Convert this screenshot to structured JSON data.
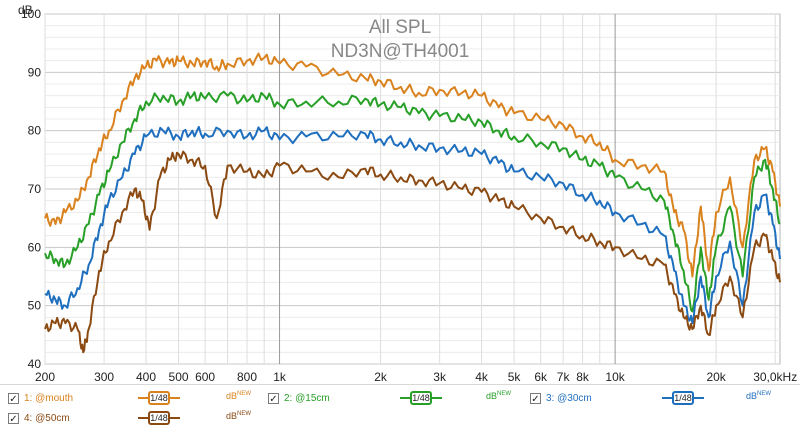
{
  "chart_data": {
    "type": "line",
    "title": "All SPL",
    "subtitle": "ND3N@TH4001",
    "ylabel": "dB",
    "xlabel": "",
    "x_scale": "log",
    "xlim": [
      200,
      31000
    ],
    "ylim": [
      40,
      100
    ],
    "grid": true,
    "x_ticks": [
      {
        "value": 200,
        "label": "200"
      },
      {
        "value": 300,
        "label": "300"
      },
      {
        "value": 400,
        "label": "400"
      },
      {
        "value": 500,
        "label": "500"
      },
      {
        "value": 600,
        "label": "600"
      },
      {
        "value": 800,
        "label": "800"
      },
      {
        "value": 1000,
        "label": "1k"
      },
      {
        "value": 2000,
        "label": "2k"
      },
      {
        "value": 3000,
        "label": "3k"
      },
      {
        "value": 4000,
        "label": "4k"
      },
      {
        "value": 5000,
        "label": "5k"
      },
      {
        "value": 6000,
        "label": "6k"
      },
      {
        "value": 7000,
        "label": "7k"
      },
      {
        "value": 8000,
        "label": "8k"
      },
      {
        "value": 10000,
        "label": "10k"
      },
      {
        "value": 20000,
        "label": "20k"
      },
      {
        "value": 30000,
        "label": "30,0kHz"
      }
    ],
    "y_ticks": [
      40,
      50,
      60,
      70,
      80,
      90,
      100
    ],
    "series": [
      {
        "name": "@mouth",
        "color": "#d9821e",
        "points": [
          [
            200,
            65
          ],
          [
            215,
            64
          ],
          [
            230,
            66
          ],
          [
            250,
            68
          ],
          [
            270,
            72
          ],
          [
            290,
            77
          ],
          [
            310,
            80
          ],
          [
            340,
            85
          ],
          [
            370,
            89
          ],
          [
            400,
            91
          ],
          [
            430,
            92
          ],
          [
            470,
            91.5
          ],
          [
            500,
            92
          ],
          [
            550,
            91.5
          ],
          [
            600,
            92
          ],
          [
            650,
            91
          ],
          [
            700,
            91.5
          ],
          [
            800,
            92
          ],
          [
            900,
            92.5
          ],
          [
            1000,
            91.5
          ],
          [
            1200,
            91
          ],
          [
            1500,
            89.5
          ],
          [
            1800,
            89
          ],
          [
            2000,
            88.5
          ],
          [
            2300,
            87.5
          ],
          [
            2600,
            86.5
          ],
          [
            3000,
            87
          ],
          [
            3500,
            86.5
          ],
          [
            4000,
            86
          ],
          [
            4500,
            84
          ],
          [
            5000,
            83
          ],
          [
            6000,
            82
          ],
          [
            7000,
            81
          ],
          [
            8000,
            79
          ],
          [
            9000,
            78
          ],
          [
            10000,
            75
          ],
          [
            12000,
            74
          ],
          [
            14000,
            73
          ],
          [
            15000,
            66
          ],
          [
            16000,
            63
          ],
          [
            17000,
            55
          ],
          [
            18000,
            67
          ],
          [
            19000,
            56
          ],
          [
            20000,
            66
          ],
          [
            22000,
            72
          ],
          [
            24000,
            60
          ],
          [
            26000,
            75
          ],
          [
            28000,
            77
          ],
          [
            29500,
            73
          ],
          [
            31000,
            67
          ]
        ]
      },
      {
        "name": "@15cm",
        "color": "#28a028",
        "points": [
          [
            200,
            59
          ],
          [
            215,
            58
          ],
          [
            230,
            57
          ],
          [
            250,
            60
          ],
          [
            270,
            64
          ],
          [
            290,
            69
          ],
          [
            310,
            73
          ],
          [
            340,
            78
          ],
          [
            370,
            82
          ],
          [
            400,
            85
          ],
          [
            450,
            86
          ],
          [
            500,
            85
          ],
          [
            550,
            86
          ],
          [
            600,
            85.5
          ],
          [
            700,
            86
          ],
          [
            800,
            85
          ],
          [
            900,
            86
          ],
          [
            1000,
            84.5
          ],
          [
            1200,
            85
          ],
          [
            1500,
            85
          ],
          [
            1800,
            85.5
          ],
          [
            2000,
            84.5
          ],
          [
            2300,
            84
          ],
          [
            2600,
            83
          ],
          [
            3000,
            82.5
          ],
          [
            3500,
            82
          ],
          [
            4000,
            81.5
          ],
          [
            4500,
            80
          ],
          [
            5000,
            79
          ],
          [
            6000,
            78
          ],
          [
            7000,
            77
          ],
          [
            8000,
            75
          ],
          [
            9000,
            74
          ],
          [
            10000,
            72
          ],
          [
            12000,
            70
          ],
          [
            14000,
            68
          ],
          [
            15000,
            62
          ],
          [
            16000,
            56
          ],
          [
            17000,
            49
          ],
          [
            18000,
            60
          ],
          [
            19000,
            51
          ],
          [
            20000,
            60
          ],
          [
            22000,
            67
          ],
          [
            24000,
            55
          ],
          [
            26000,
            72
          ],
          [
            28000,
            75
          ],
          [
            29500,
            70
          ],
          [
            31000,
            64
          ]
        ]
      },
      {
        "name": "@30cm",
        "color": "#1f6fbf",
        "points": [
          [
            200,
            52
          ],
          [
            215,
            51
          ],
          [
            230,
            50
          ],
          [
            250,
            53
          ],
          [
            270,
            57
          ],
          [
            290,
            63
          ],
          [
            310,
            68
          ],
          [
            340,
            72
          ],
          [
            370,
            76
          ],
          [
            400,
            79
          ],
          [
            450,
            80
          ],
          [
            500,
            79
          ],
          [
            550,
            80
          ],
          [
            600,
            79.5
          ],
          [
            700,
            80
          ],
          [
            800,
            79
          ],
          [
            900,
            80
          ],
          [
            1000,
            78.5
          ],
          [
            1200,
            79
          ],
          [
            1500,
            79
          ],
          [
            1800,
            79.5
          ],
          [
            2000,
            78.5
          ],
          [
            2300,
            78
          ],
          [
            2600,
            77.5
          ],
          [
            3000,
            77
          ],
          [
            3500,
            76.5
          ],
          [
            4000,
            76
          ],
          [
            4500,
            74.5
          ],
          [
            5000,
            73
          ],
          [
            6000,
            72
          ],
          [
            7000,
            71
          ],
          [
            8000,
            69
          ],
          [
            9000,
            68
          ],
          [
            10000,
            66
          ],
          [
            12000,
            64
          ],
          [
            14000,
            62
          ],
          [
            15000,
            56
          ],
          [
            16000,
            50
          ],
          [
            17000,
            47
          ],
          [
            18000,
            55
          ],
          [
            19000,
            48
          ],
          [
            20000,
            55
          ],
          [
            22000,
            61
          ],
          [
            24000,
            50
          ],
          [
            26000,
            66
          ],
          [
            28000,
            69
          ],
          [
            29500,
            64
          ],
          [
            31000,
            58
          ]
        ]
      },
      {
        "name": "@50cm",
        "color": "#8b4a12",
        "points": [
          [
            200,
            46
          ],
          [
            215,
            47
          ],
          [
            230,
            47
          ],
          [
            250,
            46
          ],
          [
            260,
            42
          ],
          [
            270,
            46
          ],
          [
            290,
            56
          ],
          [
            310,
            61
          ],
          [
            340,
            66
          ],
          [
            370,
            70
          ],
          [
            390,
            68
          ],
          [
            410,
            63
          ],
          [
            440,
            72
          ],
          [
            470,
            75
          ],
          [
            500,
            76
          ],
          [
            550,
            75
          ],
          [
            600,
            74
          ],
          [
            650,
            65
          ],
          [
            700,
            74
          ],
          [
            800,
            73
          ],
          [
            900,
            72
          ],
          [
            1000,
            74
          ],
          [
            1200,
            73
          ],
          [
            1500,
            72
          ],
          [
            1800,
            73.5
          ],
          [
            2000,
            72.5
          ],
          [
            2300,
            72
          ],
          [
            2600,
            71.5
          ],
          [
            3000,
            71
          ],
          [
            3500,
            70
          ],
          [
            4000,
            69.5
          ],
          [
            4500,
            68
          ],
          [
            5000,
            67
          ],
          [
            6000,
            65
          ],
          [
            7000,
            63.5
          ],
          [
            8000,
            62
          ],
          [
            9000,
            61
          ],
          [
            10000,
            60
          ],
          [
            12000,
            58
          ],
          [
            14000,
            57
          ],
          [
            15000,
            52
          ],
          [
            16000,
            48
          ],
          [
            17000,
            46
          ],
          [
            18000,
            50
          ],
          [
            19000,
            45
          ],
          [
            20000,
            50
          ],
          [
            22000,
            55
          ],
          [
            24000,
            48
          ],
          [
            26000,
            60
          ],
          [
            28000,
            62
          ],
          [
            29500,
            58
          ],
          [
            31000,
            54
          ]
        ]
      }
    ]
  },
  "legend": {
    "items": [
      {
        "id": "1",
        "label": "1: @mouth",
        "smooth": "1/48",
        "db": "dB",
        "db_sup": "NEW",
        "color": "#d9821e",
        "checked": "✓"
      },
      {
        "id": "2",
        "label": "2: @15cm",
        "smooth": "1/48",
        "db": "dB",
        "db_sup": "NEW",
        "color": "#28a028",
        "checked": "✓"
      },
      {
        "id": "3",
        "label": "3: @30cm",
        "smooth": "1/48",
        "db": "dB",
        "db_sup": "NEW",
        "color": "#1f6fbf",
        "checked": "✓"
      },
      {
        "id": "4",
        "label": "4: @50cm",
        "smooth": "1/48",
        "db": "dB",
        "db_sup": "NEW",
        "color": "#8b4a12",
        "checked": "✓"
      }
    ]
  }
}
